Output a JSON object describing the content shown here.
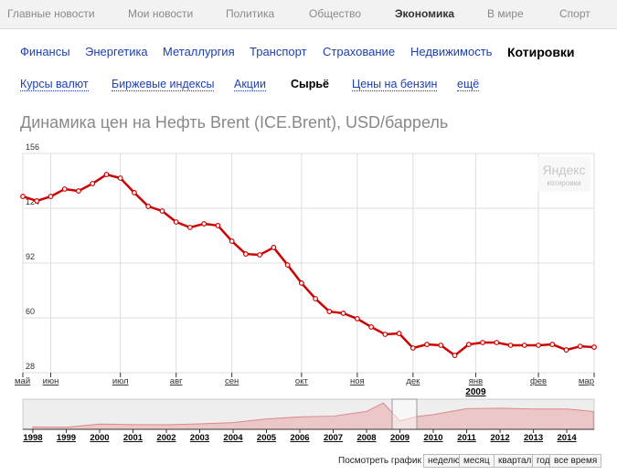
{
  "top_nav": [
    "Главные новости",
    "Мои новости",
    "Политика",
    "Общество",
    "Экономика",
    "В мире",
    "Спорт"
  ],
  "section_nav": [
    "Финансы",
    "Энергетика",
    "Металлургия",
    "Транспорт",
    "Страхование",
    "Недвижимость",
    "Котировки"
  ],
  "sub_nav": [
    "Курсы валют",
    "Биржевые индексы",
    "Акции",
    "Сырьё",
    "Цены на бензин",
    "ещё"
  ],
  "chart_data": [
    {
      "type": "line",
      "title": "Динамика цен на Нефть Brent (ICE.Brent), USD/баррель",
      "watermark": "Яндекс",
      "watermark_sub": "котировки",
      "year_note": "2009",
      "x": [
        0,
        1,
        2,
        3,
        4,
        5,
        6,
        7,
        8,
        9,
        10,
        11,
        12,
        13,
        14,
        15,
        16,
        17,
        18,
        19,
        20,
        21,
        22,
        23,
        24,
        25,
        26,
        27,
        28,
        29,
        30,
        31,
        32,
        33,
        34,
        35,
        36,
        37,
        38,
        39,
        40,
        41
      ],
      "values": [
        130.9,
        128.3,
        130.9,
        135.2,
        134.1,
        138.4,
        143.7,
        141.6,
        133.1,
        125.1,
        122.4,
        116,
        112.8,
        114.9,
        113.9,
        104.8,
        97.3,
        96.8,
        101.1,
        90.9,
        80.3,
        71.2,
        63.7,
        62.7,
        59.5,
        54.7,
        50.4,
        50.9,
        42.4,
        44.5,
        44,
        38.1,
        44.5,
        45.6,
        45.6,
        44,
        44,
        44,
        44.5,
        41.3,
        43.4,
        42.9
      ],
      "color": "#cc0000",
      "xlim": [
        0,
        41
      ],
      "xticks": [
        {
          "value": 0,
          "label": "май"
        },
        {
          "value": 2,
          "label": "июн"
        },
        {
          "value": 7,
          "label": "июл"
        },
        {
          "value": 11,
          "label": "авг"
        },
        {
          "value": 15,
          "label": "сен"
        },
        {
          "value": 20,
          "label": "окт"
        },
        {
          "value": 24,
          "label": "ноя"
        },
        {
          "value": 28,
          "label": "дек"
        },
        {
          "value": 32.5,
          "label": "янв"
        },
        {
          "value": 37,
          "label": "фев"
        },
        {
          "value": 41,
          "label": "мар"
        }
      ],
      "ylim": [
        28,
        156
      ],
      "yticks": [
        28,
        60,
        92,
        124,
        156
      ],
      "grid": true
    },
    {
      "type": "area",
      "x": [
        1998,
        1999,
        2000,
        2001,
        2002,
        2003,
        2004,
        2005,
        2006,
        2007,
        2008,
        2008.5,
        2009,
        2009.5,
        2010,
        2011,
        2012,
        2013,
        2014,
        2014.8
      ],
      "values": [
        13,
        11,
        28,
        25,
        24,
        29,
        36,
        55,
        66,
        70,
        95,
        140,
        45,
        68,
        78,
        110,
        112,
        108,
        108,
        95
      ],
      "color": "#e8a0a0",
      "xlim": [
        1997.7,
        2014.82
      ],
      "ylim": [
        0,
        160
      ],
      "xticks": [
        1998,
        1999,
        2000,
        2001,
        2002,
        2003,
        2004,
        2005,
        2006,
        2007,
        2008,
        2009,
        2010,
        2011,
        2012,
        2013,
        2014
      ]
    }
  ],
  "period_selector": {
    "label": "Посмотреть график за:",
    "buttons": [
      "неделю",
      "месяц",
      "квартал",
      "год",
      "все время"
    ]
  }
}
